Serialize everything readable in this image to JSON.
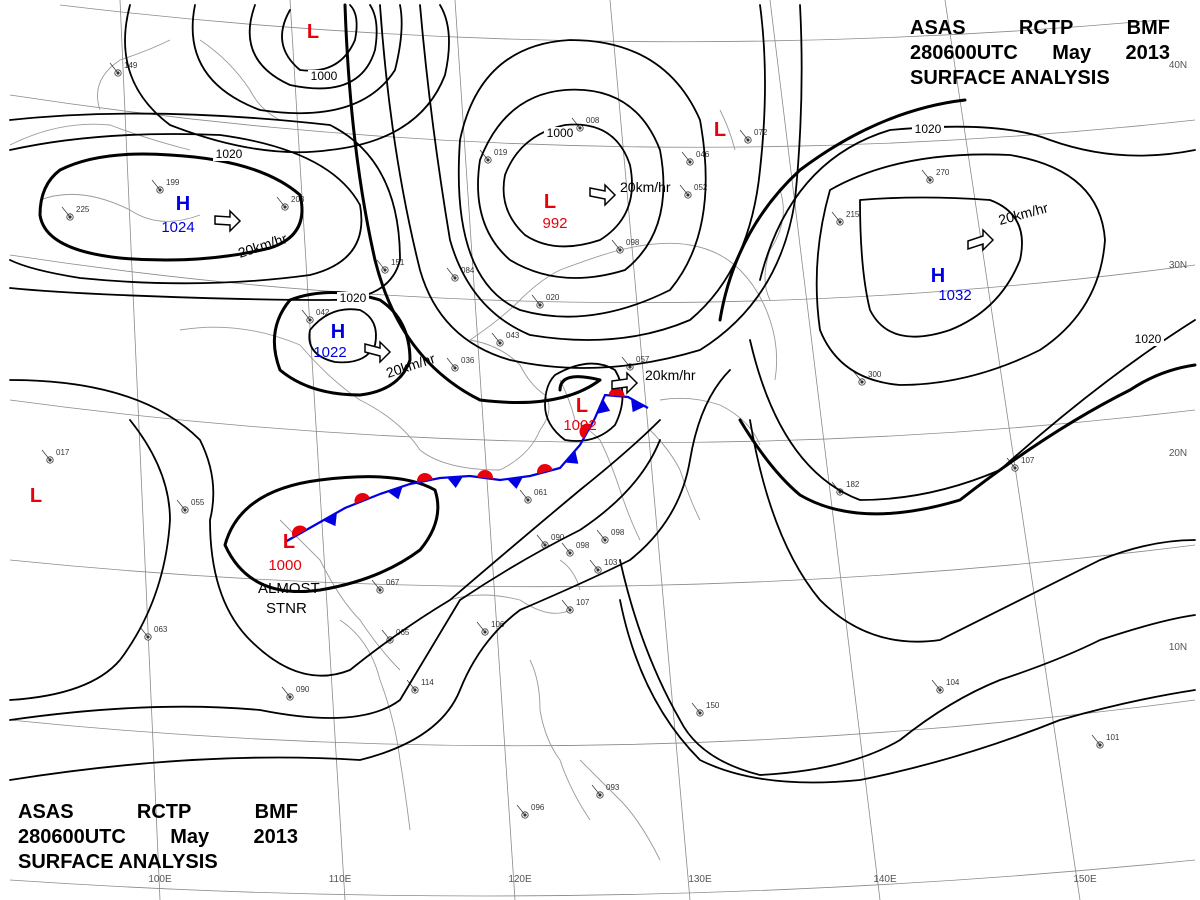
{
  "title": {
    "line1": [
      "ASAS",
      "RCTP",
      "BMF"
    ],
    "line2": [
      "280600UTC",
      "May",
      "2013"
    ],
    "line3": "SURFACE  ANALYSIS"
  },
  "colors": {
    "low": "#e8000b",
    "high": "#0000e0",
    "line": "#000000",
    "grid": "#8a8a8a",
    "coast": "#9a9a9a"
  },
  "pressure_systems": [
    {
      "type": "L",
      "pressure": ""
    },
    {
      "type": "L",
      "pressure": ""
    },
    {
      "type": "L",
      "pressure": ""
    },
    {
      "type": "L",
      "pressure": "992"
    },
    {
      "type": "L",
      "pressure": "1002"
    },
    {
      "type": "L",
      "pressure": "1000"
    },
    {
      "type": "H",
      "pressure": "1024"
    },
    {
      "type": "H",
      "pressure": "1022"
    },
    {
      "type": "H",
      "pressure": "1032"
    }
  ],
  "isobar_labels": [
    "1000",
    "1020",
    "1000",
    "1020",
    "1020",
    "1020"
  ],
  "movement_labels": [
    "20km/hr",
    "20km/hr",
    "20km/hr",
    "20km/hr",
    "20km/hr"
  ],
  "front_note": [
    "ALMOST",
    "STNR"
  ],
  "longitude_labels": [
    "100E",
    "110E",
    "120E",
    "130E",
    "140E",
    "150E"
  ],
  "latitude_labels": [
    "40N",
    "30N",
    "20N",
    "10N"
  ],
  "station_samples": [
    "149",
    "199",
    "225",
    "203",
    "151",
    "084",
    "019",
    "008",
    "046",
    "052",
    "072",
    "215",
    "270",
    "300",
    "182",
    "107",
    "055",
    "061",
    "098",
    "103",
    "107",
    "106",
    "090",
    "150",
    "104",
    "101",
    "093",
    "096",
    "017",
    "063",
    "067",
    "065",
    "042",
    "020",
    "043",
    "057",
    "036",
    "114",
    "090",
    "098",
    "098"
  ]
}
